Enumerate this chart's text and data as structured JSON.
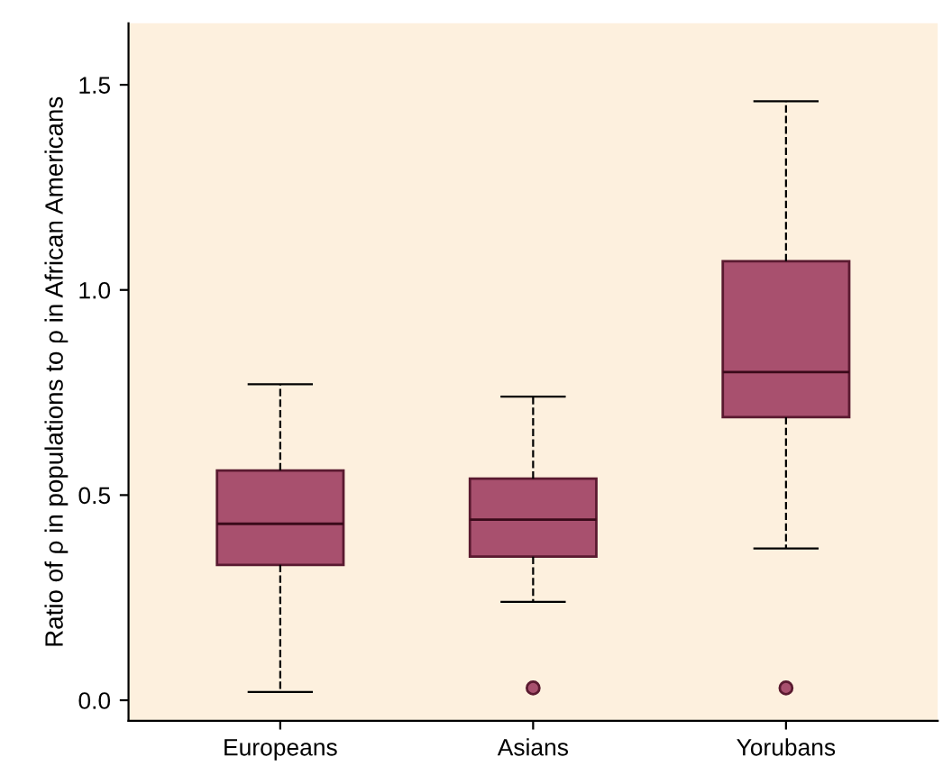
{
  "chart_data": {
    "type": "box",
    "ylabel": "Ratio of ρ in populations to ρ in African Americans",
    "categories": [
      "Europeans",
      "Asians",
      "Yorubans"
    ],
    "boxes": [
      {
        "low": 0.02,
        "q1": 0.33,
        "median": 0.43,
        "q3": 0.56,
        "high": 0.77
      },
      {
        "low": 0.24,
        "q1": 0.35,
        "median": 0.44,
        "q3": 0.54,
        "high": 0.74,
        "outliers": [
          0.03
        ]
      },
      {
        "low": 0.37,
        "q1": 0.69,
        "median": 0.8,
        "q3": 1.07,
        "high": 1.46,
        "outliers": [
          0.03
        ]
      }
    ],
    "color": "#a8506e",
    "line_style": "dashed",
    "ylim": [
      -0.05,
      1.65
    ],
    "yticks": [
      {
        "value": 0,
        "label": "0.0"
      },
      {
        "value": 0.5,
        "label": "0.5"
      },
      {
        "value": 1,
        "label": "1.0"
      },
      {
        "value": 1.5,
        "label": "1.5"
      }
    ],
    "grid": false
  }
}
